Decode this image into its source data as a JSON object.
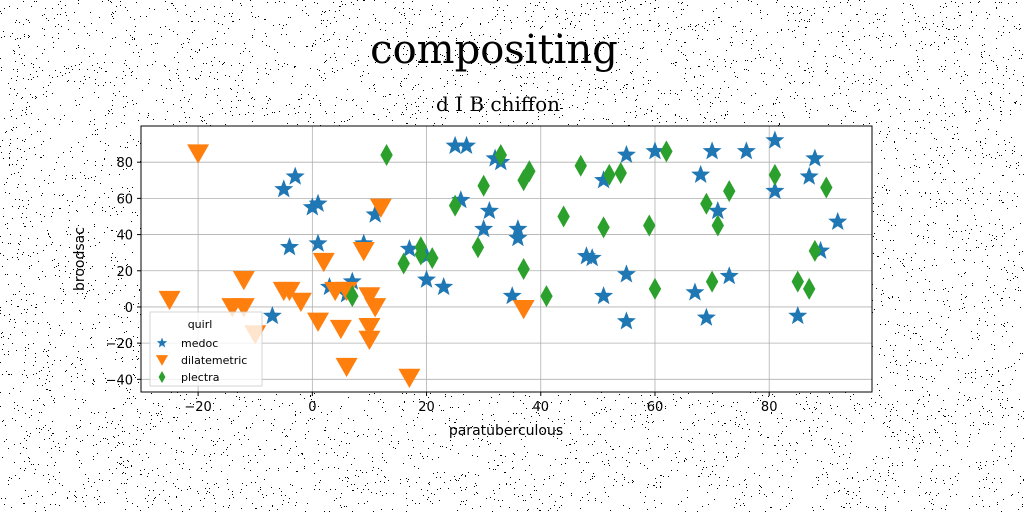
{
  "chart_data": {
    "type": "scatter",
    "title": "compositing",
    "subtitle": "d I B chiffon",
    "xlabel": "paratuberculous",
    "ylabel": "broodsac",
    "xlim": [
      -30,
      98
    ],
    "ylim": [
      -47,
      100
    ],
    "xticks": [
      -20,
      0,
      20,
      40,
      60,
      80
    ],
    "yticks": [
      -40,
      -20,
      0,
      20,
      40,
      60,
      80
    ],
    "grid": true,
    "legend": {
      "title": "quirl",
      "placement": "bottom-left"
    },
    "series": [
      {
        "name": "medoc",
        "color": "#1f77b4",
        "marker": "star",
        "points": [
          [
            -7,
            -5
          ],
          [
            -5,
            65
          ],
          [
            -4,
            33
          ],
          [
            -3,
            72
          ],
          [
            0,
            55
          ],
          [
            1,
            57
          ],
          [
            1,
            35
          ],
          [
            3,
            11
          ],
          [
            6,
            7
          ],
          [
            7,
            14
          ],
          [
            9,
            35
          ],
          [
            11,
            51
          ],
          [
            17,
            32
          ],
          [
            20,
            28
          ],
          [
            20,
            15
          ],
          [
            23,
            11
          ],
          [
            26,
            59
          ],
          [
            25,
            89
          ],
          [
            27,
            89
          ],
          [
            30,
            43
          ],
          [
            31,
            53
          ],
          [
            32,
            82
          ],
          [
            33,
            80
          ],
          [
            35,
            6
          ],
          [
            36,
            43
          ],
          [
            36,
            38
          ],
          [
            48,
            28
          ],
          [
            49,
            27
          ],
          [
            51,
            6
          ],
          [
            51,
            70
          ],
          [
            55,
            18
          ],
          [
            55,
            -8
          ],
          [
            55,
            84
          ],
          [
            60,
            86
          ],
          [
            67,
            8
          ],
          [
            68,
            73
          ],
          [
            69,
            -6
          ],
          [
            70,
            86
          ],
          [
            71,
            53
          ],
          [
            73,
            17
          ],
          [
            76,
            86
          ],
          [
            81,
            64
          ],
          [
            81,
            92
          ],
          [
            85,
            -5
          ],
          [
            87,
            72
          ],
          [
            88,
            82
          ],
          [
            89,
            31
          ],
          [
            92,
            47
          ]
        ]
      },
      {
        "name": "dilatemetric",
        "color": "#ff7f0e",
        "marker": "triangle-down",
        "points": [
          [
            -20,
            85
          ],
          [
            -25,
            4
          ],
          [
            -14,
            0
          ],
          [
            -12,
            15
          ],
          [
            -12,
            0
          ],
          [
            -10,
            -15
          ],
          [
            -5,
            9
          ],
          [
            -4,
            9
          ],
          [
            -2,
            3
          ],
          [
            1,
            -8
          ],
          [
            2,
            25
          ],
          [
            4,
            9
          ],
          [
            5,
            -12
          ],
          [
            6,
            9
          ],
          [
            6,
            -33
          ],
          [
            9,
            31
          ],
          [
            10,
            6
          ],
          [
            10,
            -11
          ],
          [
            10,
            -18
          ],
          [
            11,
            0
          ],
          [
            12,
            55
          ],
          [
            17,
            -39
          ],
          [
            37,
            -1
          ]
        ]
      },
      {
        "name": "plectra",
        "color": "#2ca02c",
        "marker": "diamond",
        "points": [
          [
            7,
            6
          ],
          [
            13,
            84
          ],
          [
            16,
            24
          ],
          [
            19,
            33
          ],
          [
            19,
            29
          ],
          [
            21,
            27
          ],
          [
            25,
            56
          ],
          [
            29,
            33
          ],
          [
            30,
            67
          ],
          [
            33,
            84
          ],
          [
            37,
            21
          ],
          [
            37,
            70
          ],
          [
            38,
            75
          ],
          [
            41,
            6
          ],
          [
            44,
            50
          ],
          [
            47,
            78
          ],
          [
            51,
            44
          ],
          [
            52,
            73
          ],
          [
            54,
            74
          ],
          [
            59,
            45
          ],
          [
            60,
            10
          ],
          [
            62,
            86
          ],
          [
            69,
            57
          ],
          [
            70,
            14
          ],
          [
            71,
            45
          ],
          [
            73,
            64
          ],
          [
            81,
            73
          ],
          [
            85,
            14
          ],
          [
            87,
            10
          ],
          [
            88,
            31
          ],
          [
            90,
            66
          ]
        ]
      }
    ]
  }
}
